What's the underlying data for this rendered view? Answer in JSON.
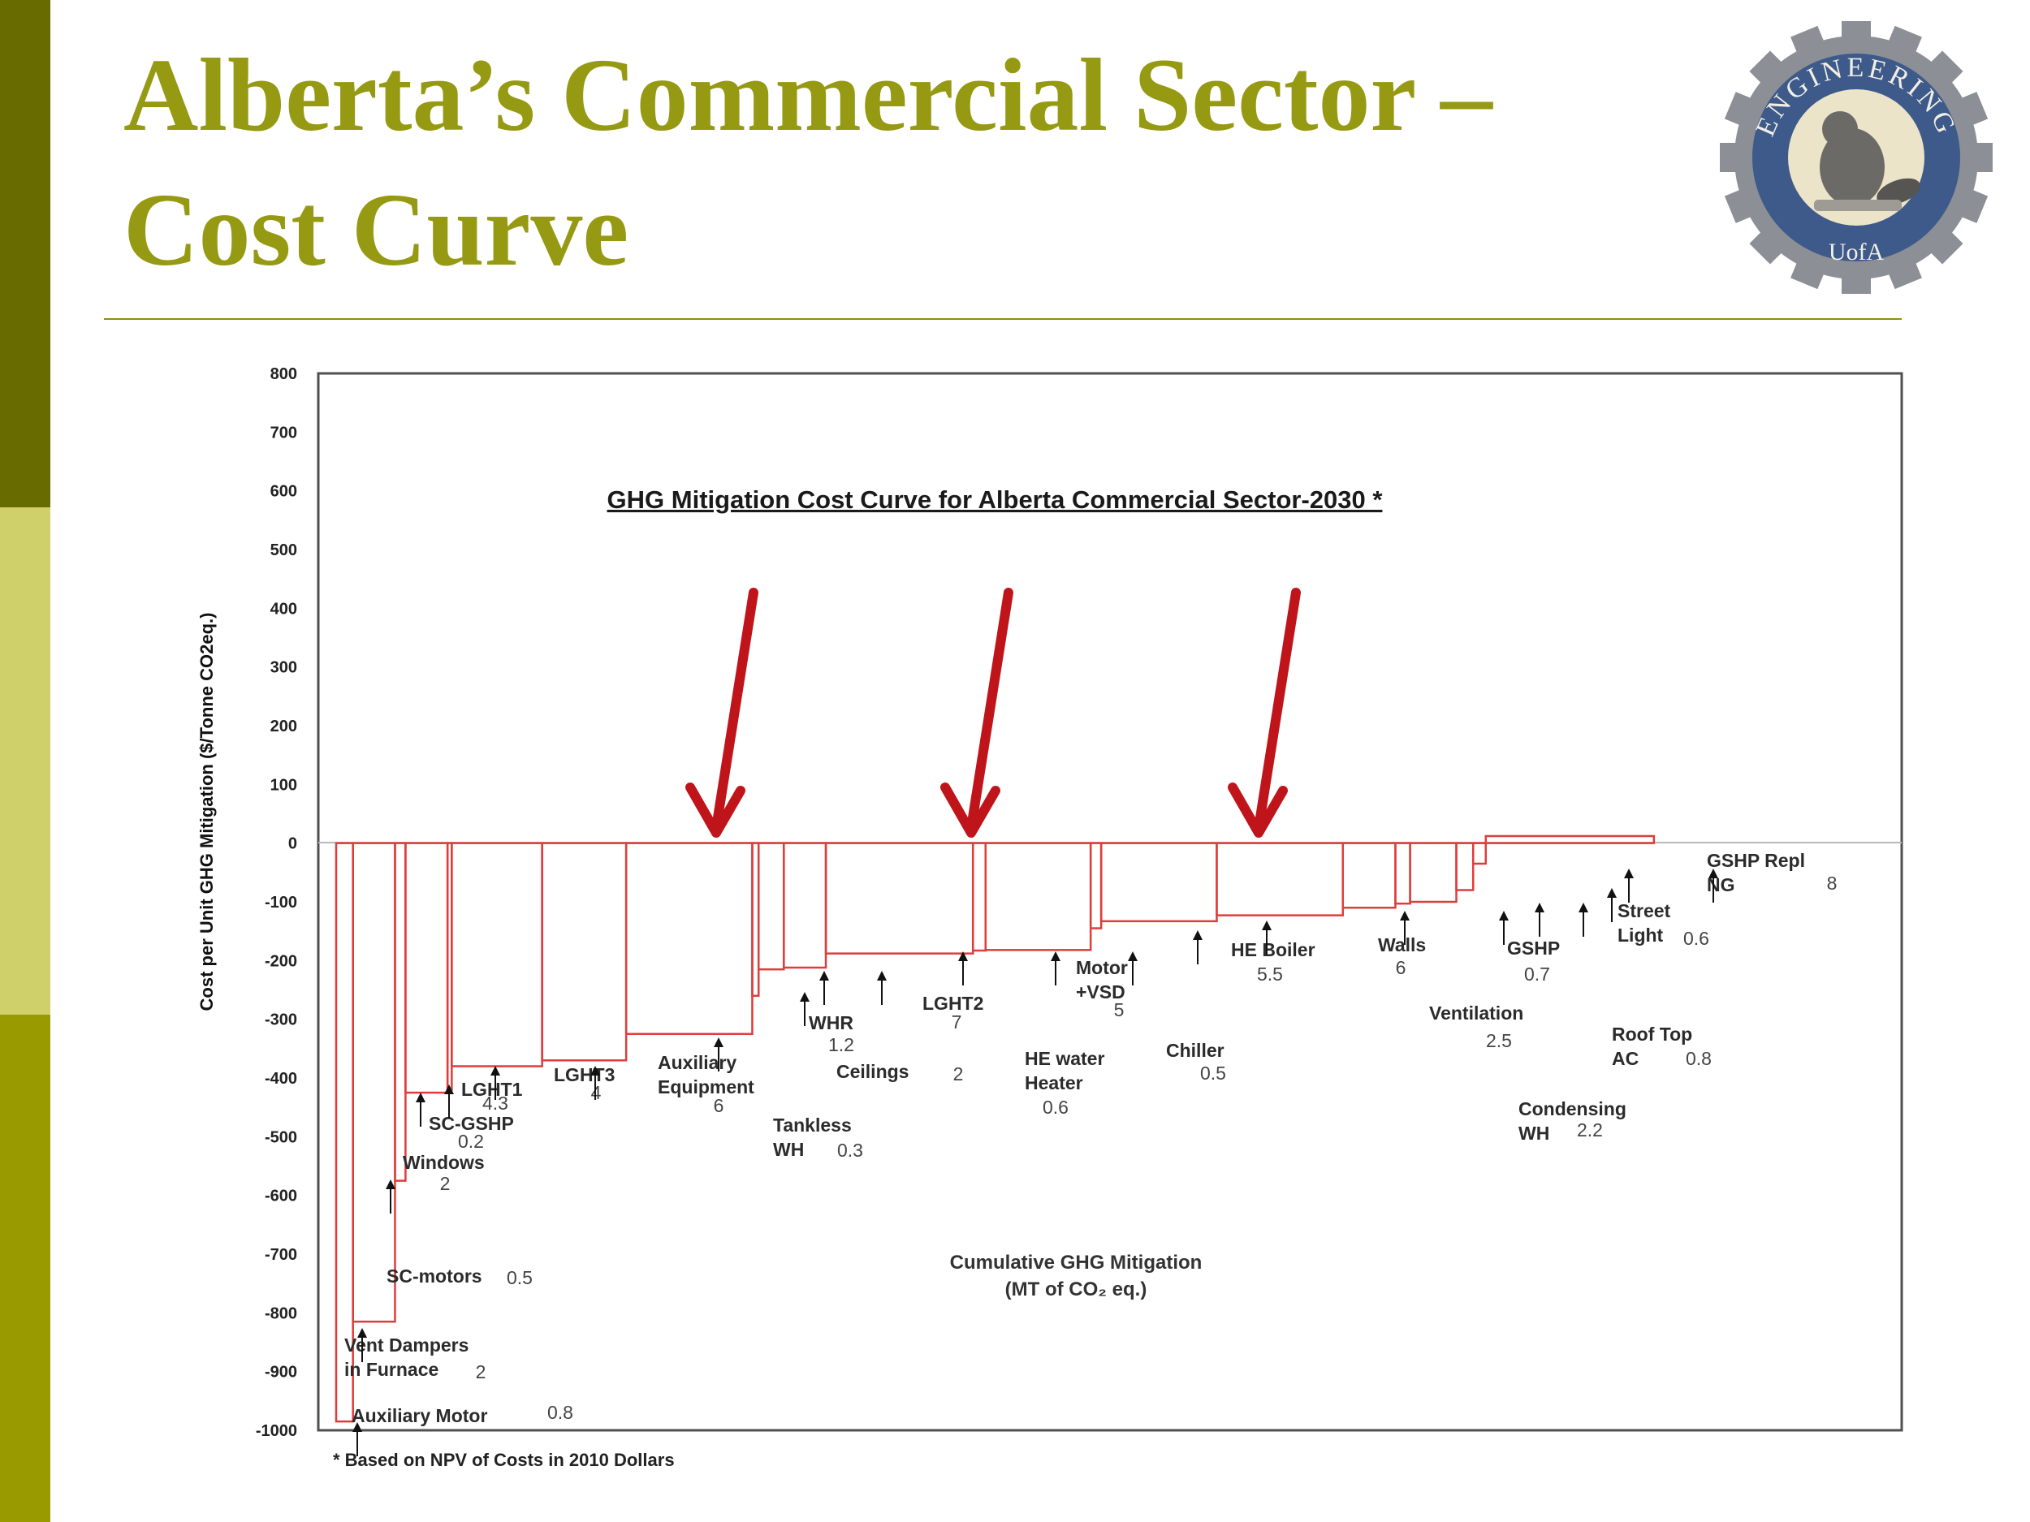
{
  "slide": {
    "title_line1": "Alberta’s Commercial Sector –",
    "title_line2": "Cost Curve",
    "logo_text_top": "ENGINEERING",
    "logo_text_bottom": "UofA"
  },
  "colors": {
    "title": "#969a12",
    "sidebar_dark": "#676b00",
    "sidebar_light": "#cfd06a",
    "sidebar_mid": "#999a00",
    "curve": "#e03c3c",
    "arrow": "#c0141b"
  },
  "chart_data": {
    "type": "bar",
    "title": "GHG Mitigation Cost Curve for Alberta Commercial Sector-2030 *",
    "xlabel_line1": "Cumulative GHG Mitigation",
    "xlabel_line2": "(MT of CO₂ eq.)",
    "ylabel": "Cost per Unit GHG  Mitigation ($/Tonne CO2eq.)",
    "ylim": [
      -1000,
      800
    ],
    "xlim": [
      0,
      68
    ],
    "yticks": [
      "800",
      "700",
      "600",
      "500",
      "400",
      "300",
      "200",
      "100",
      "0",
      "-100",
      "-200",
      "-300",
      "-400",
      "-500",
      "-600",
      "-700",
      "-800",
      "-900",
      "-1000"
    ],
    "grid": false,
    "footnote": "* Based on NPV of Costs in 2010 Dollars",
    "series": [
      {
        "name": "Auxiliary  Motor",
        "value": "0.8",
        "cost": -985,
        "width": 0.8
      },
      {
        "name": "Vent Dampers in Furnace",
        "value": "2",
        "cost": -815,
        "width": 2
      },
      {
        "name": "SC-motors",
        "value": "0.5",
        "cost": -575,
        "width": 0.5
      },
      {
        "name": "Windows",
        "value": "2",
        "cost": -425,
        "width": 2
      },
      {
        "name": "SC-GSHP",
        "value": "0.2",
        "cost": -420,
        "width": 0.2
      },
      {
        "name": "LGHT1",
        "value": "4.3",
        "cost": -380,
        "width": 4.3
      },
      {
        "name": "LGHT3",
        "value": "4",
        "cost": -370,
        "width": 4
      },
      {
        "name": "Auxiliary Equipment",
        "value": "6",
        "cost": -325,
        "width": 6
      },
      {
        "name": "Tankless WH",
        "value": "0.3",
        "cost": -260,
        "width": 0.3
      },
      {
        "name": "WHR",
        "value": "1.2",
        "cost": -215,
        "width": 1.2
      },
      {
        "name": "Ceilings",
        "value": "2",
        "cost": -212,
        "width": 2
      },
      {
        "name": "LGHT2",
        "value": "7",
        "cost": -188,
        "width": 7
      },
      {
        "name": "HE water Heater",
        "value": "0.6",
        "cost": -183,
        "width": 0.6
      },
      {
        "name": "Motor +VSD",
        "value": "5",
        "cost": -182,
        "width": 5
      },
      {
        "name": "Chiller",
        "value": "0.5",
        "cost": -145,
        "width": 0.5
      },
      {
        "name": "HE Boiler",
        "value": "5.5",
        "cost": -133,
        "width": 5.5
      },
      {
        "name": "Walls",
        "value": "6",
        "cost": -123,
        "width": 6
      },
      {
        "name": "Ventilation",
        "value": "2.5",
        "cost": -110,
        "width": 2.5
      },
      {
        "name": "GSHP",
        "value": "0.7",
        "cost": -103,
        "width": 0.7
      },
      {
        "name": "Condensing WH",
        "value": "2.2",
        "cost": -100,
        "width": 2.2
      },
      {
        "name": "Roof Top AC",
        "value": "0.8",
        "cost": -80,
        "width": 0.8
      },
      {
        "name": "Street Light",
        "value": "0.6",
        "cost": -35,
        "width": 0.6
      },
      {
        "name": "GSHP Repl NG",
        "value": "8",
        "cost": 12,
        "width": 8
      }
    ]
  }
}
